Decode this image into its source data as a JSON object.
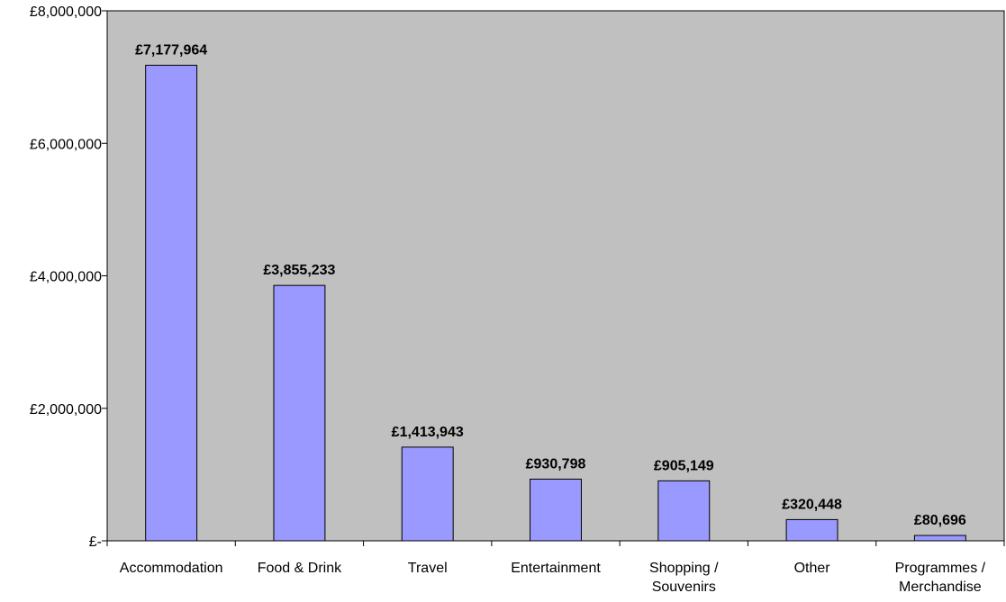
{
  "chart_data": {
    "type": "bar",
    "categories": [
      [
        "Accommodation"
      ],
      [
        "Food & Drink"
      ],
      [
        "Travel"
      ],
      [
        "Entertainment"
      ],
      [
        "Shopping /",
        "Souvenirs"
      ],
      [
        "Other"
      ],
      [
        "Programmes /",
        "Merchandise"
      ]
    ],
    "values": [
      7177964,
      3855233,
      1413943,
      930798,
      905149,
      320448,
      80696
    ],
    "value_labels": [
      "£7,177,964",
      "£3,855,233",
      "£1,413,943",
      "£930,798",
      "£905,149",
      "£320,448",
      "£80,696"
    ],
    "y_ticks": [
      0,
      2000000,
      4000000,
      6000000,
      8000000
    ],
    "y_tick_labels": [
      "£-",
      "£2,000,000",
      "£4,000,000",
      "£6,000,000",
      "£8,000,000"
    ],
    "ylim": [
      0,
      8000000
    ],
    "title": "",
    "xlabel": "",
    "ylabel": "",
    "grid": false,
    "legend": "none",
    "colors": {
      "plot_background": "#c0c0c0",
      "bar_fill": "#9999ff",
      "bar_stroke": "#000000",
      "axis": "#000000"
    }
  }
}
